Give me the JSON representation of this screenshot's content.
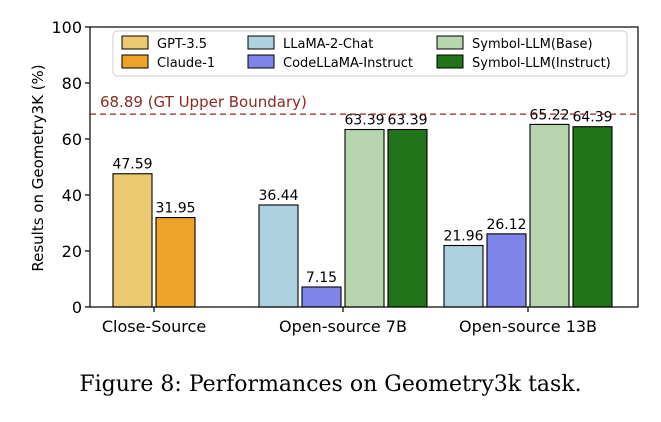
{
  "chart_data": {
    "type": "bar",
    "ylabel": "Results on Geometry3K (%)",
    "ylim": [
      0,
      100
    ],
    "yticks": [
      0,
      20,
      40,
      60,
      80,
      100
    ],
    "groups": [
      {
        "label": "Close-Source",
        "bars": [
          {
            "series": "GPT-3.5",
            "value": 47.59,
            "label": "47.59"
          },
          {
            "series": "Claude-1",
            "value": 31.95,
            "label": "31.95"
          }
        ]
      },
      {
        "label": "Open-source 7B",
        "bars": [
          {
            "series": "LLaMA-2-Chat",
            "value": 36.44,
            "label": "36.44"
          },
          {
            "series": "CodeLLaMA-Instruct",
            "value": 7.15,
            "label": "7.15"
          },
          {
            "series": "Symbol-LLM(Base)",
            "value": 63.39,
            "label": "63.39"
          },
          {
            "series": "Symbol-LLM(Instruct)",
            "value": 63.39,
            "label": "63.39"
          }
        ]
      },
      {
        "label": "Open-source 13B",
        "bars": [
          {
            "series": "LLaMA-2-Chat",
            "value": 21.96,
            "label": "21.96"
          },
          {
            "series": "CodeLLaMA-Instruct",
            "value": 26.12,
            "label": "26.12"
          },
          {
            "series": "Symbol-LLM(Base)",
            "value": 65.22,
            "label": "65.22"
          },
          {
            "series": "Symbol-LLM(Instruct)",
            "value": 64.39,
            "label": "64.39"
          }
        ]
      }
    ],
    "series": [
      {
        "name": "GPT-3.5",
        "color": "#ebc971"
      },
      {
        "name": "Claude-1",
        "color": "#eca327"
      },
      {
        "name": "LLaMA-2-Chat",
        "color": "#aed1e2"
      },
      {
        "name": "CodeLLaMA-Instruct",
        "color": "#7f85e8"
      },
      {
        "name": "Symbol-LLM(Base)",
        "color": "#b7d5af"
      },
      {
        "name": "Symbol-LLM(Instruct)",
        "color": "#22731a"
      }
    ],
    "reference_line": {
      "value": 68.89,
      "label": "68.89 (GT Upper Boundary)",
      "color": "#8b2a22"
    },
    "legend_position": "top"
  },
  "caption": "Figure 8: Performances on Geometry3k task."
}
